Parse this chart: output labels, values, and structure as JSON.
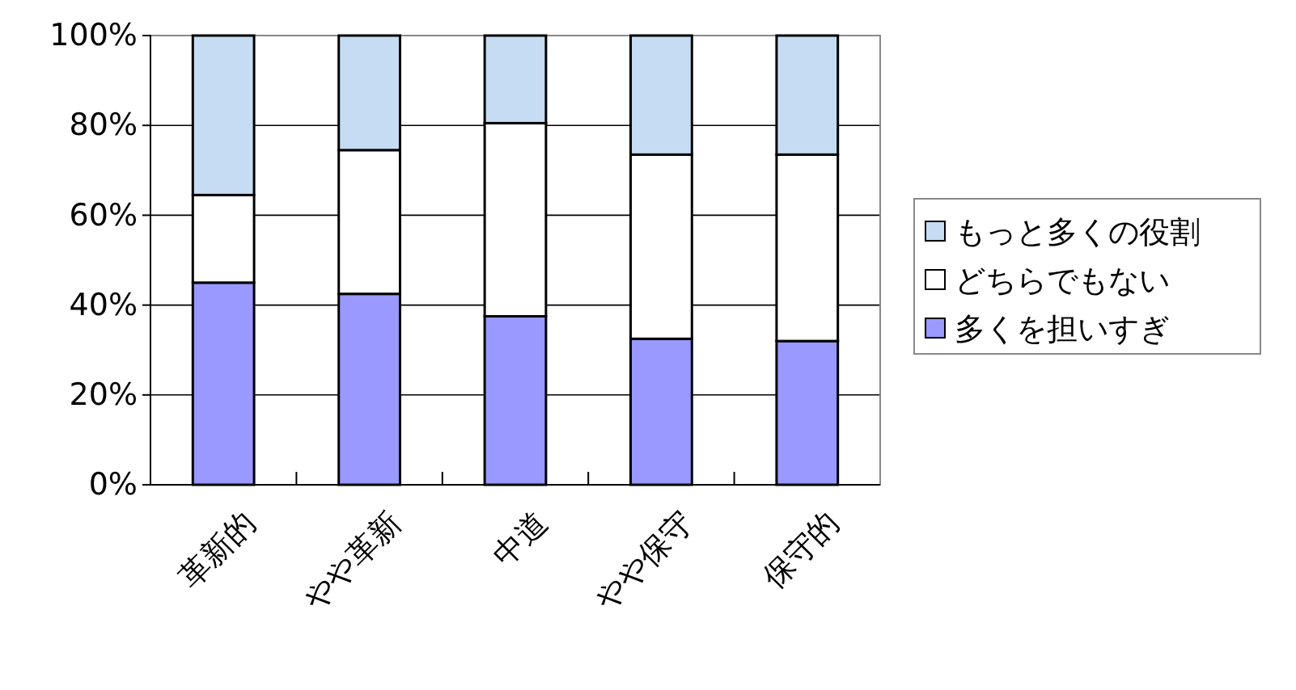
{
  "chart_data": {
    "type": "bar",
    "stacked": true,
    "categories": [
      "革新的",
      "やや革新",
      "中道",
      "やや保守",
      "保守的"
    ],
    "series": [
      {
        "name": "多くを担いすぎ",
        "color": "#9999ff",
        "values": [
          45,
          42.5,
          37.5,
          32.5,
          32
        ]
      },
      {
        "name": "どちらでもない",
        "color": "#ffffff",
        "values": [
          19.5,
          32,
          43,
          41,
          41.5
        ]
      },
      {
        "name": "もっと多くの役割",
        "color": "#c5dcf2",
        "values": [
          35.5,
          25.5,
          19.5,
          26.5,
          26.5
        ]
      }
    ],
    "ylim": [
      0,
      100
    ],
    "yticks": [
      {
        "value": 0,
        "label": "0%"
      },
      {
        "value": 20,
        "label": "20%"
      },
      {
        "value": 40,
        "label": "40%"
      },
      {
        "value": 60,
        "label": "60%"
      },
      {
        "value": 80,
        "label": "80%"
      },
      {
        "value": 100,
        "label": "100%"
      }
    ],
    "grid": "y",
    "legend": "right"
  }
}
